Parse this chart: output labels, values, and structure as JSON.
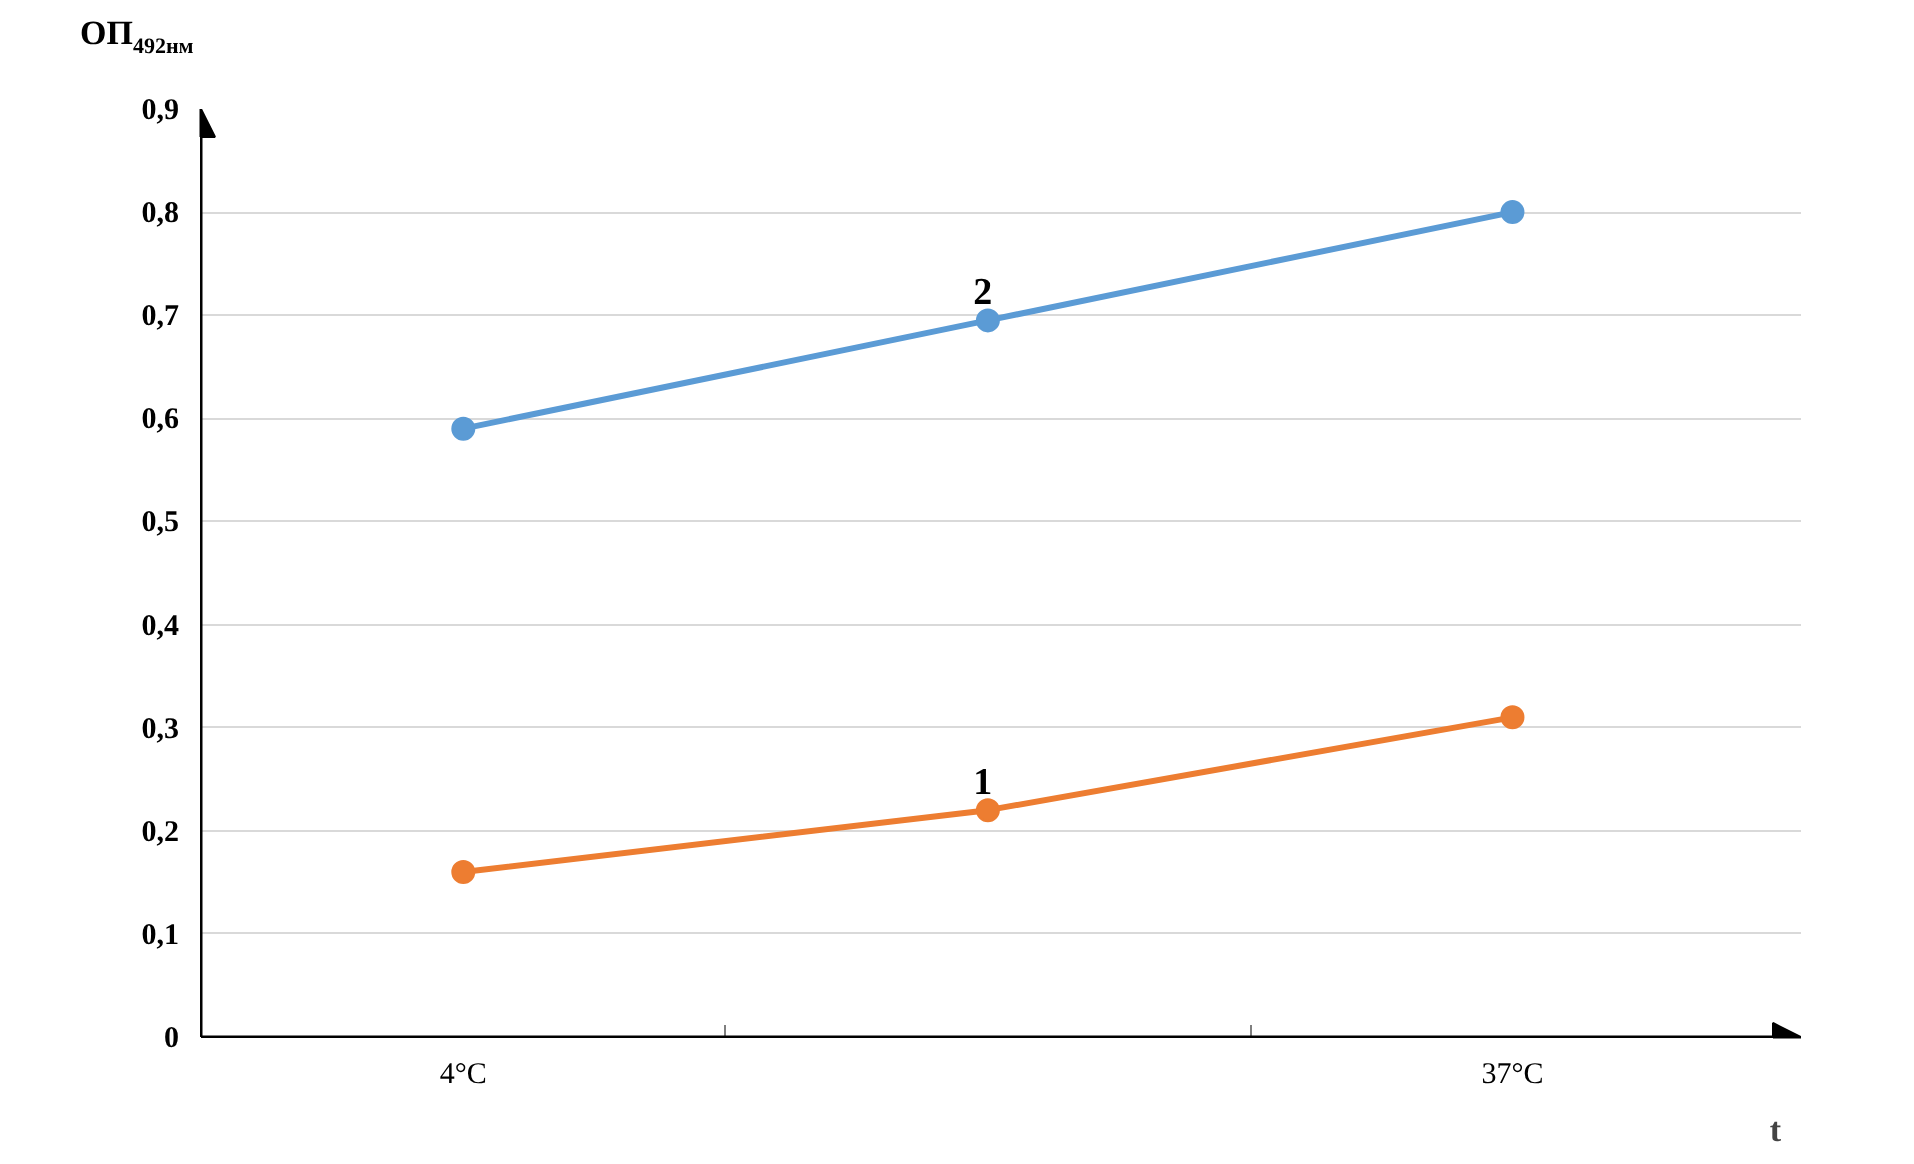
{
  "chart_data": {
    "type": "line",
    "ylabel": "ОП$_{492нм}$",
    "xlabel": "t",
    "categories": [
      "4°C",
      null,
      "37°C"
    ],
    "series": [
      {
        "name": "1",
        "color": "#ed7d31",
        "values": [
          0.16,
          0.22,
          0.31
        ]
      },
      {
        "name": "2",
        "color": "#5b9bd5",
        "values": [
          0.59,
          0.695,
          0.8
        ]
      }
    ],
    "ylim": [
      0,
      0.9
    ],
    "yticks": [
      {
        "value": 0,
        "label": "0"
      },
      {
        "value": 0.1,
        "label": "0,1"
      },
      {
        "value": 0.2,
        "label": "0,2"
      },
      {
        "value": 0.3,
        "label": "0,3"
      },
      {
        "value": 0.4,
        "label": "0,4"
      },
      {
        "value": 0.5,
        "label": "0,5"
      },
      {
        "value": 0.6,
        "label": "0,6"
      },
      {
        "value": 0.7,
        "label": "0,7"
      },
      {
        "value": 0.8,
        "label": "0,8"
      },
      {
        "value": 0.9,
        "label": "0,9"
      }
    ],
    "grid": "y",
    "marker": "circle",
    "line_style": "solid"
  }
}
